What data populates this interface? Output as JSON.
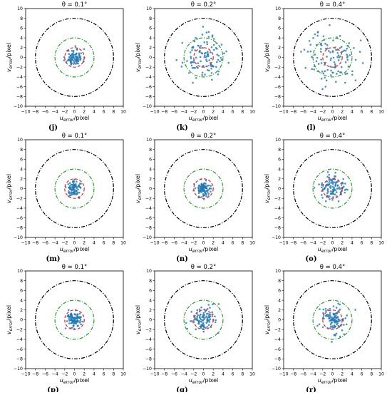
{
  "chart_data": [
    {
      "type": "scatter",
      "label": "(j)",
      "title": "θ = 0.1°",
      "xlabel_main": "u",
      "xlabel_sub": "error",
      "xlabel_rest": "/pixel",
      "ylabel_main": "v",
      "ylabel_sub": "error",
      "ylabel_rest": "/pixel",
      "xlim": [
        -10,
        10
      ],
      "ylim": [
        -10,
        10
      ],
      "xticks": [
        -10,
        -8,
        -6,
        -4,
        -2,
        0,
        2,
        4,
        6,
        8,
        10
      ],
      "yticks": [
        -10,
        -8,
        -6,
        -4,
        -2,
        0,
        2,
        4,
        6,
        8,
        10
      ],
      "circles": [
        {
          "radius": 2,
          "color": "#d62728"
        },
        {
          "radius": 4,
          "color": "#2ca02c"
        },
        {
          "radius": 8,
          "color": "#000000"
        }
      ],
      "point_spread": 1.0,
      "point_count": 90,
      "point_color": "#1f77b4",
      "seed": 11
    },
    {
      "type": "scatter",
      "label": "(k)",
      "title": "θ = 0.2°",
      "xlabel_main": "u",
      "xlabel_sub": "error",
      "xlabel_rest": "/pixel",
      "ylabel_main": "v",
      "ylabel_sub": "error",
      "ylabel_rest": "/pixel",
      "xlim": [
        -10,
        10
      ],
      "ylim": [
        -10,
        10
      ],
      "xticks": [
        -10,
        -8,
        -6,
        -4,
        -2,
        0,
        2,
        4,
        6,
        8,
        10
      ],
      "yticks": [
        -10,
        -8,
        -6,
        -4,
        -2,
        0,
        2,
        4,
        6,
        8,
        10
      ],
      "circles": [
        {
          "radius": 2,
          "color": "#d62728"
        },
        {
          "radius": 4,
          "color": "#2ca02c"
        },
        {
          "radius": 8,
          "color": "#000000"
        }
      ],
      "point_spread": 2.4,
      "point_count": 110,
      "point_color": "#1f77b4",
      "seed": 23
    },
    {
      "type": "scatter",
      "label": "(l)",
      "title": "θ = 0.4°",
      "xlabel_main": "u",
      "xlabel_sub": "error",
      "xlabel_rest": "/pixel",
      "ylabel_main": "v",
      "ylabel_sub": "error",
      "ylabel_rest": "/pixel",
      "xlim": [
        -10,
        10
      ],
      "ylim": [
        -10,
        10
      ],
      "xticks": [
        -10,
        -8,
        -6,
        -4,
        -2,
        0,
        2,
        4,
        6,
        8,
        10
      ],
      "yticks": [
        -10,
        -8,
        -6,
        -4,
        -2,
        0,
        2,
        4,
        6,
        8,
        10
      ],
      "circles": [
        {
          "radius": 2,
          "color": "#d62728"
        },
        {
          "radius": 4,
          "color": "#2ca02c"
        },
        {
          "radius": 8,
          "color": "#000000"
        }
      ],
      "point_spread": 3.2,
      "point_count": 110,
      "point_color": "#1f77b4",
      "seed": 37
    },
    {
      "type": "scatter",
      "label": "(m)",
      "title": "θ = 0.1°",
      "xlabel_main": "u",
      "xlabel_sub": "error",
      "xlabel_rest": "/pixel",
      "ylabel_main": "v",
      "ylabel_sub": "error",
      "ylabel_rest": "/pixel",
      "xlim": [
        -10,
        10
      ],
      "ylim": [
        -10,
        10
      ],
      "xticks": [
        -10,
        -8,
        -6,
        -4,
        -2,
        0,
        2,
        4,
        6,
        8,
        10
      ],
      "yticks": [
        -10,
        -8,
        -6,
        -4,
        -2,
        0,
        2,
        4,
        6,
        8,
        10
      ],
      "circles": [
        {
          "radius": 2,
          "color": "#d62728"
        },
        {
          "radius": 4,
          "color": "#2ca02c"
        },
        {
          "radius": 8,
          "color": "#000000"
        }
      ],
      "point_spread": 0.9,
      "point_count": 90,
      "point_color": "#1f77b4",
      "seed": 41
    },
    {
      "type": "scatter",
      "label": "(n)",
      "title": "θ = 0.2°",
      "xlabel_main": "u",
      "xlabel_sub": "error",
      "xlabel_rest": "/pixel",
      "ylabel_main": "v",
      "ylabel_sub": "error",
      "ylabel_rest": "/pixel",
      "xlim": [
        -10,
        10
      ],
      "ylim": [
        -10,
        10
      ],
      "xticks": [
        -10,
        -8,
        -6,
        -4,
        -2,
        0,
        2,
        4,
        6,
        8,
        10
      ],
      "yticks": [
        -10,
        -8,
        -6,
        -4,
        -2,
        0,
        2,
        4,
        6,
        8,
        10
      ],
      "circles": [
        {
          "radius": 2,
          "color": "#d62728"
        },
        {
          "radius": 4,
          "color": "#2ca02c"
        },
        {
          "radius": 8,
          "color": "#000000"
        }
      ],
      "point_spread": 0.9,
      "point_count": 100,
      "point_color": "#1f77b4",
      "seed": 53
    },
    {
      "type": "scatter",
      "label": "(o)",
      "title": "θ = 0.4°",
      "xlabel_main": "u",
      "xlabel_sub": "error",
      "xlabel_rest": "/pixel",
      "ylabel_main": "v",
      "ylabel_sub": "error",
      "ylabel_rest": "/pixel",
      "xlim": [
        -10,
        10
      ],
      "ylim": [
        -10,
        10
      ],
      "xticks": [
        -10,
        -8,
        -6,
        -4,
        -2,
        0,
        2,
        4,
        6,
        8,
        10
      ],
      "yticks": [
        -10,
        -8,
        -6,
        -4,
        -2,
        0,
        2,
        4,
        6,
        8,
        10
      ],
      "circles": [
        {
          "radius": 2,
          "color": "#d62728"
        },
        {
          "radius": 4,
          "color": "#2ca02c"
        },
        {
          "radius": 8,
          "color": "#000000"
        }
      ],
      "point_spread": 1.5,
      "point_count": 110,
      "point_color": "#1f77b4",
      "seed": 67
    },
    {
      "type": "scatter",
      "label": "(p)",
      "title": "θ = 0.1°",
      "xlabel_main": "u",
      "xlabel_sub": "error",
      "xlabel_rest": "/pixel",
      "ylabel_main": "v",
      "ylabel_sub": "error",
      "ylabel_rest": "/pixel",
      "xlim": [
        -10,
        10
      ],
      "ylim": [
        -10,
        10
      ],
      "xticks": [
        -10,
        -8,
        -6,
        -4,
        -2,
        0,
        2,
        4,
        6,
        8,
        10
      ],
      "yticks": [
        -10,
        -8,
        -6,
        -4,
        -2,
        0,
        2,
        4,
        6,
        8,
        10
      ],
      "circles": [
        {
          "radius": 2,
          "color": "#d62728"
        },
        {
          "radius": 4,
          "color": "#2ca02c"
        },
        {
          "radius": 8,
          "color": "#000000"
        }
      ],
      "point_spread": 1.0,
      "point_count": 100,
      "point_color": "#1f77b4",
      "seed": 71
    },
    {
      "type": "scatter",
      "label": "(q)",
      "title": "θ = 0.2°",
      "xlabel_main": "u",
      "xlabel_sub": "error",
      "xlabel_rest": "/pixel",
      "ylabel_main": "v",
      "ylabel_sub": "error",
      "ylabel_rest": "/pixel",
      "xlim": [
        -10,
        10
      ],
      "ylim": [
        -10,
        10
      ],
      "xticks": [
        -10,
        -8,
        -6,
        -4,
        -2,
        0,
        2,
        4,
        6,
        8,
        10
      ],
      "yticks": [
        -10,
        -8,
        -6,
        -4,
        -2,
        0,
        2,
        4,
        6,
        8,
        10
      ],
      "circles": [
        {
          "radius": 2,
          "color": "#d62728"
        },
        {
          "radius": 4,
          "color": "#2ca02c"
        },
        {
          "radius": 8,
          "color": "#000000"
        }
      ],
      "point_spread": 1.5,
      "point_count": 100,
      "point_color": "#1f77b4",
      "seed": 83
    },
    {
      "type": "scatter",
      "label": "(r)",
      "title": "θ = 0.4°",
      "xlabel_main": "u",
      "xlabel_sub": "error",
      "xlabel_rest": "/pixel",
      "ylabel_main": "v",
      "ylabel_sub": "error",
      "ylabel_rest": "/pixel",
      "xlim": [
        -10,
        10
      ],
      "ylim": [
        -10,
        10
      ],
      "xticks": [
        -10,
        -8,
        -6,
        -4,
        -2,
        0,
        2,
        4,
        6,
        8,
        10
      ],
      "yticks": [
        -10,
        -8,
        -6,
        -4,
        -2,
        0,
        2,
        4,
        6,
        8,
        10
      ],
      "circles": [
        {
          "radius": 2,
          "color": "#d62728"
        },
        {
          "radius": 4,
          "color": "#2ca02c"
        },
        {
          "radius": 8,
          "color": "#000000"
        }
      ],
      "point_spread": 1.8,
      "point_count": 110,
      "point_color": "#1f77b4",
      "seed": 97
    }
  ]
}
